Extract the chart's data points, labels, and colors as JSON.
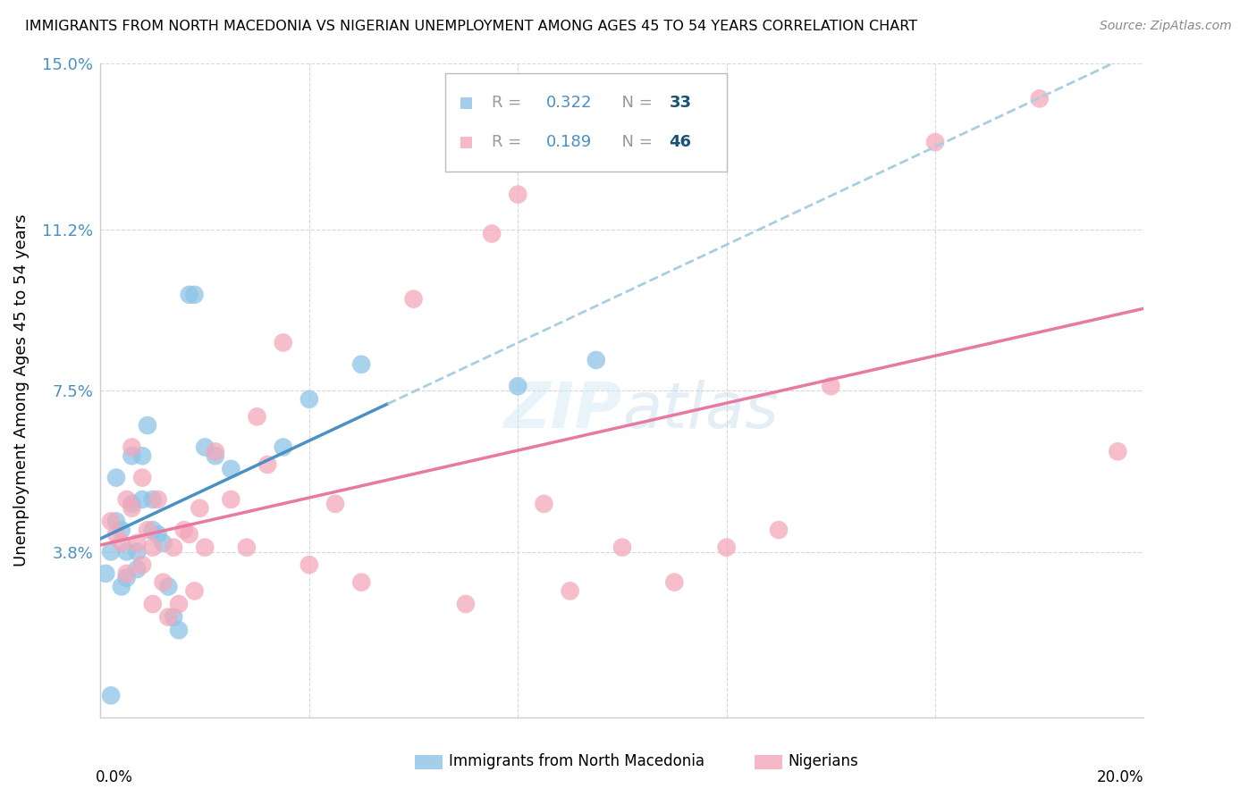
{
  "title": "IMMIGRANTS FROM NORTH MACEDONIA VS NIGERIAN UNEMPLOYMENT AMONG AGES 45 TO 54 YEARS CORRELATION CHART",
  "source": "Source: ZipAtlas.com",
  "ylabel": "Unemployment Among Ages 45 to 54 years",
  "xlim": [
    0.0,
    0.2
  ],
  "ylim": [
    0.0,
    0.15
  ],
  "ytick_vals": [
    0.038,
    0.075,
    0.112,
    0.15
  ],
  "ytick_labels": [
    "3.8%",
    "7.5%",
    "11.2%",
    "15.0%"
  ],
  "color_blue": "#8ec4e8",
  "color_pink": "#f4a7b9",
  "color_blue_line": "#4a90c4",
  "color_pink_line": "#e87aa0",
  "color_blue_dashed": "#a8cfe0",
  "background_color": "#ffffff",
  "grid_color": "#d8d8d8",
  "blue_x": [
    0.001,
    0.002,
    0.002,
    0.003,
    0.003,
    0.004,
    0.004,
    0.005,
    0.005,
    0.006,
    0.006,
    0.007,
    0.007,
    0.008,
    0.008,
    0.009,
    0.01,
    0.01,
    0.011,
    0.012,
    0.013,
    0.014,
    0.015,
    0.017,
    0.018,
    0.02,
    0.022,
    0.025,
    0.035,
    0.04,
    0.05,
    0.08,
    0.095
  ],
  "blue_y": [
    0.033,
    0.005,
    0.038,
    0.045,
    0.055,
    0.03,
    0.043,
    0.038,
    0.032,
    0.049,
    0.06,
    0.038,
    0.034,
    0.05,
    0.06,
    0.067,
    0.043,
    0.05,
    0.042,
    0.04,
    0.03,
    0.023,
    0.02,
    0.097,
    0.097,
    0.062,
    0.06,
    0.057,
    0.062,
    0.073,
    0.081,
    0.076,
    0.082
  ],
  "pink_x": [
    0.002,
    0.003,
    0.004,
    0.005,
    0.005,
    0.006,
    0.006,
    0.007,
    0.008,
    0.008,
    0.009,
    0.01,
    0.01,
    0.011,
    0.012,
    0.013,
    0.014,
    0.015,
    0.016,
    0.017,
    0.018,
    0.019,
    0.02,
    0.022,
    0.025,
    0.028,
    0.03,
    0.032,
    0.035,
    0.04,
    0.045,
    0.05,
    0.06,
    0.07,
    0.075,
    0.08,
    0.085,
    0.09,
    0.1,
    0.11,
    0.12,
    0.13,
    0.14,
    0.16,
    0.18,
    0.195
  ],
  "pink_y": [
    0.045,
    0.042,
    0.04,
    0.05,
    0.033,
    0.048,
    0.062,
    0.04,
    0.055,
    0.035,
    0.043,
    0.039,
    0.026,
    0.05,
    0.031,
    0.023,
    0.039,
    0.026,
    0.043,
    0.042,
    0.029,
    0.048,
    0.039,
    0.061,
    0.05,
    0.039,
    0.069,
    0.058,
    0.086,
    0.035,
    0.049,
    0.031,
    0.096,
    0.026,
    0.111,
    0.12,
    0.049,
    0.029,
    0.039,
    0.031,
    0.039,
    0.043,
    0.076,
    0.132,
    0.142,
    0.061
  ],
  "legend_items": [
    {
      "label_r": "R = 0.322",
      "label_n": "N = 33",
      "color": "#8ec4e8"
    },
    {
      "label_r": "R = 0.189",
      "label_n": "N = 46",
      "color": "#f4a7b9"
    }
  ]
}
